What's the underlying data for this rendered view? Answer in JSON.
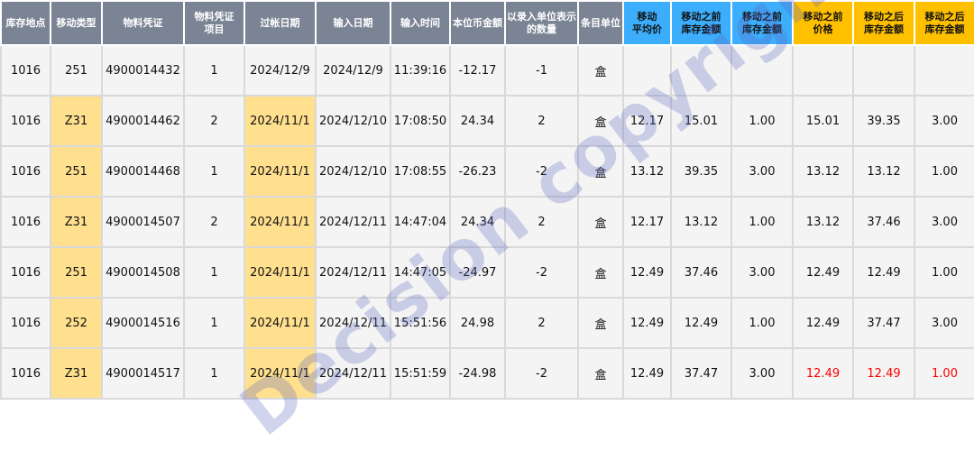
{
  "headers": [
    {
      "label": "库存地点",
      "style": "gray"
    },
    {
      "label": "移动类型",
      "style": "gray"
    },
    {
      "label": "物料凭证",
      "style": "gray"
    },
    {
      "label": "物料凭证\n项目",
      "style": "gray"
    },
    {
      "label": "过帐日期",
      "style": "gray"
    },
    {
      "label": "输入日期",
      "style": "gray"
    },
    {
      "label": "输入时间",
      "style": "gray"
    },
    {
      "label": "本位币金额",
      "style": "gray"
    },
    {
      "label": "以录入单位表示\n的数量",
      "style": "gray"
    },
    {
      "label": "条目单位",
      "style": "gray"
    },
    {
      "label": "移动\n平均价",
      "style": "blue"
    },
    {
      "label": "移动之前\n库存金额",
      "style": "blue"
    },
    {
      "label": "移动之前\n库存金额",
      "style": "blue"
    },
    {
      "label": "移动之前\n价格",
      "style": "gold"
    },
    {
      "label": "移动之后\n库存金额",
      "style": "gold"
    },
    {
      "label": "移动之后\n库存金额",
      "style": "gold"
    }
  ],
  "rows": [
    [
      "1016",
      "251",
      "4900014432",
      "1",
      "2024/12/9",
      "2024/12/9",
      "11:39:16",
      "-12.17",
      "-1",
      "盒",
      "",
      "",
      "",
      "",
      "",
      ""
    ],
    [
      "1016",
      "Z31",
      "4900014462",
      "2",
      "2024/11/1",
      "2024/12/10",
      "17:08:50",
      "24.34",
      "2",
      "盒",
      "12.17",
      "15.01",
      "1.00",
      "15.01",
      "39.35",
      "3.00"
    ],
    [
      "1016",
      "251",
      "4900014468",
      "1",
      "2024/11/1",
      "2024/12/10",
      "17:08:55",
      "-26.23",
      "-2",
      "盒",
      "13.12",
      "39.35",
      "3.00",
      "13.12",
      "13.12",
      "1.00"
    ],
    [
      "1016",
      "Z31",
      "4900014507",
      "2",
      "2024/11/1",
      "2024/12/11",
      "14:47:04",
      "24.34",
      "2",
      "盒",
      "12.17",
      "13.12",
      "1.00",
      "13.12",
      "37.46",
      "3.00"
    ],
    [
      "1016",
      "251",
      "4900014508",
      "1",
      "2024/11/1",
      "2024/12/11",
      "14:47:05",
      "-24.97",
      "-2",
      "盒",
      "12.49",
      "37.46",
      "3.00",
      "12.49",
      "12.49",
      "1.00"
    ],
    [
      "1016",
      "252",
      "4900014516",
      "1",
      "2024/11/1",
      "2024/12/11",
      "15:51:56",
      "24.98",
      "2",
      "盒",
      "12.49",
      "12.49",
      "1.00",
      "12.49",
      "37.47",
      "3.00"
    ],
    [
      "1016",
      "Z31",
      "4900014517",
      "1",
      "2024/11/1",
      "2024/12/11",
      "15:51:59",
      "-24.98",
      "-2",
      "盒",
      "12.49",
      "37.47",
      "3.00",
      "12.49",
      "12.49",
      "1.00"
    ]
  ],
  "highlight_columns": [
    1,
    4
  ],
  "highlight_color": "#ffe08f",
  "red_cells": {
    "row": 6,
    "columns": [
      13,
      14,
      15
    ],
    "color": "#ff0000"
  },
  "watermark": "Decision copyright"
}
